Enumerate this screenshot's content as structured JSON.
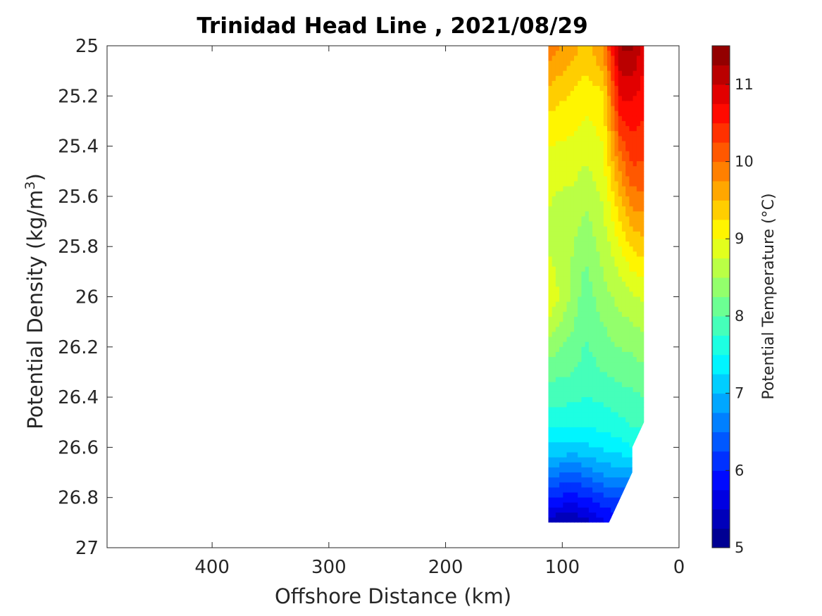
{
  "chart_data": {
    "type": "contour",
    "title": "Trinidad Head Line , 2021/08/29",
    "xlabel": "Offshore Distance (km)",
    "ylabel_main": "Potential Density (kg/m",
    "ylabel_sup": "3",
    "ylabel_end": ")",
    "colorbar_label": "Potential Temperature (°C)",
    "xlim": [
      490,
      0
    ],
    "x_reversed": true,
    "ylim": [
      27,
      25
    ],
    "y_reversed": true,
    "x_ticks": [
      400,
      300,
      200,
      100,
      0
    ],
    "x_tick_labels": [
      "400",
      "300",
      "200",
      "100",
      "0"
    ],
    "y_ticks": [
      25,
      25.2,
      25.4,
      25.6,
      25.8,
      26,
      26.2,
      26.4,
      26.6,
      26.8,
      27
    ],
    "y_tick_labels": [
      "25",
      "25.2",
      "25.4",
      "25.6",
      "25.8",
      "26",
      "26.2",
      "26.4",
      "26.6",
      "26.8",
      "27"
    ],
    "colorbar_range": [
      5,
      11.5
    ],
    "colorbar_step": 0.25,
    "colorbar_ticks": [
      5,
      6,
      7,
      8,
      9,
      10,
      11
    ],
    "colorbar_tick_labels": [
      "5",
      "6",
      "7",
      "8",
      "9",
      "10",
      "11"
    ],
    "stations_km": [
      112,
      90,
      80,
      65,
      50,
      40,
      30
    ],
    "section_bounds_density": [
      {
        "x": 112,
        "top": 25,
        "bottom": 26.9
      },
      {
        "x": 60,
        "top": 25,
        "bottom": 26.9
      },
      {
        "x": 40,
        "top": 25,
        "bottom": 26.7
      },
      {
        "x": 40,
        "top": 25,
        "bottom": 26.6
      },
      {
        "x": 30,
        "top": 25,
        "bottom": 26.5
      }
    ],
    "temperature_profiles": [
      {
        "x": 112,
        "sigma": [
          25,
          25.2,
          25.5,
          25.8,
          26,
          26.3,
          26.5,
          26.6,
          26.7,
          26.8,
          26.9
        ],
        "temp": [
          9.9,
          9.4,
          8.8,
          8.7,
          9.0,
          8.1,
          7.6,
          7.2,
          6.6,
          6.0,
          5.3
        ]
      },
      {
        "x": 90,
        "sigma": [
          25,
          25.2,
          25.5,
          25.8,
          26,
          26.3,
          26.5,
          26.6,
          26.7,
          26.8,
          26.9
        ],
        "temp": [
          9.6,
          9.2,
          8.8,
          8.5,
          8.4,
          8.0,
          7.6,
          7.2,
          6.5,
          5.9,
          5.3
        ]
      },
      {
        "x": 80,
        "sigma": [
          25,
          25.2,
          25.5,
          25.8,
          26,
          26.3,
          26.5,
          26.6,
          26.7,
          26.8,
          26.9
        ],
        "temp": [
          9.4,
          9.1,
          8.7,
          8.3,
          8.1,
          7.9,
          7.6,
          7.2,
          6.6,
          6.0,
          5.4
        ]
      },
      {
        "x": 65,
        "sigma": [
          25,
          25.2,
          25.5,
          25.8,
          26,
          26.3,
          26.5,
          26.6,
          26.7,
          26.8,
          26.9
        ],
        "temp": [
          9.8,
          9.2,
          8.9,
          8.6,
          8.4,
          8.0,
          7.6,
          7.3,
          6.8,
          6.2,
          5.7
        ]
      },
      {
        "x": 50,
        "sigma": [
          25,
          25.2,
          25.5,
          25.8,
          26,
          26.3,
          26.5,
          26.6,
          26.7,
          26.8,
          26.9
        ],
        "temp": [
          11.3,
          10.8,
          9.8,
          9.0,
          8.6,
          8.1,
          7.7,
          7.4,
          6.9,
          6.3,
          5.8
        ]
      },
      {
        "x": 40,
        "sigma": [
          25,
          25.2,
          25.5,
          25.8,
          26,
          26.3,
          26.5,
          26.6,
          26.7,
          26.8,
          26.9
        ],
        "temp": [
          11.3,
          10.8,
          10.2,
          9.3,
          8.7,
          8.1,
          7.8,
          7.5,
          6.9,
          6.3,
          5.8
        ]
      },
      {
        "x": 30,
        "sigma": [
          25,
          25.2,
          25.5,
          25.8,
          26,
          26.3,
          26.5,
          26.6,
          26.7,
          26.8,
          26.9
        ],
        "temp": [
          10.9,
          10.6,
          10.2,
          9.4,
          8.8,
          8.2,
          7.8,
          7.5,
          6.9,
          6.3,
          5.8
        ]
      }
    ]
  }
}
